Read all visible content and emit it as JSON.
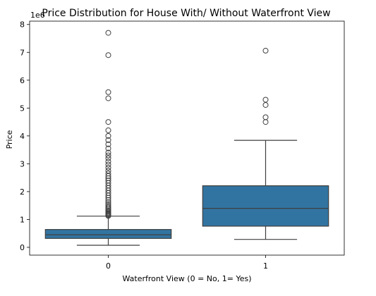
{
  "chart_data": {
    "type": "box",
    "title": "Price Distribution for House With/ Without Waterfront View",
    "xlabel": "Waterfront View (0 = No, 1= Yes)",
    "ylabel": "Price",
    "y_offset_label": "1e6",
    "categories": [
      "0",
      "1"
    ],
    "ylim": [
      -0.28,
      8.12
    ],
    "y_ticks": [
      0,
      1,
      2,
      3,
      4,
      5,
      6,
      7,
      8
    ],
    "y_tick_labels": [
      "0",
      "1",
      "2",
      "3",
      "4",
      "5",
      "6",
      "7",
      "8"
    ],
    "box_color": "#3274a1",
    "line_color": "#3f3f3f",
    "series": [
      {
        "category": "0",
        "whisker_low": 0.075,
        "q1": 0.32,
        "median": 0.45,
        "q3": 0.64,
        "whisker_high": 1.12,
        "outliers": [
          1.13,
          1.16,
          1.19,
          1.22,
          1.25,
          1.29,
          1.33,
          1.38,
          1.43,
          1.49,
          1.55,
          1.62,
          1.7,
          1.78,
          1.86,
          1.95,
          2.04,
          2.13,
          2.22,
          2.31,
          2.4,
          2.48,
          2.56,
          2.65,
          2.75,
          2.86,
          2.97,
          3.08,
          3.2,
          3.3,
          3.4,
          3.55,
          3.7,
          3.85,
          4.0,
          4.2,
          4.5,
          5.35,
          5.57,
          6.9,
          7.7
        ]
      },
      {
        "category": "1",
        "whisker_low": 0.285,
        "q1": 0.76,
        "median": 1.4,
        "q3": 2.21,
        "whisker_high": 3.84,
        "outliers": [
          4.5,
          4.67,
          5.11,
          5.3,
          7.06
        ]
      }
    ]
  }
}
